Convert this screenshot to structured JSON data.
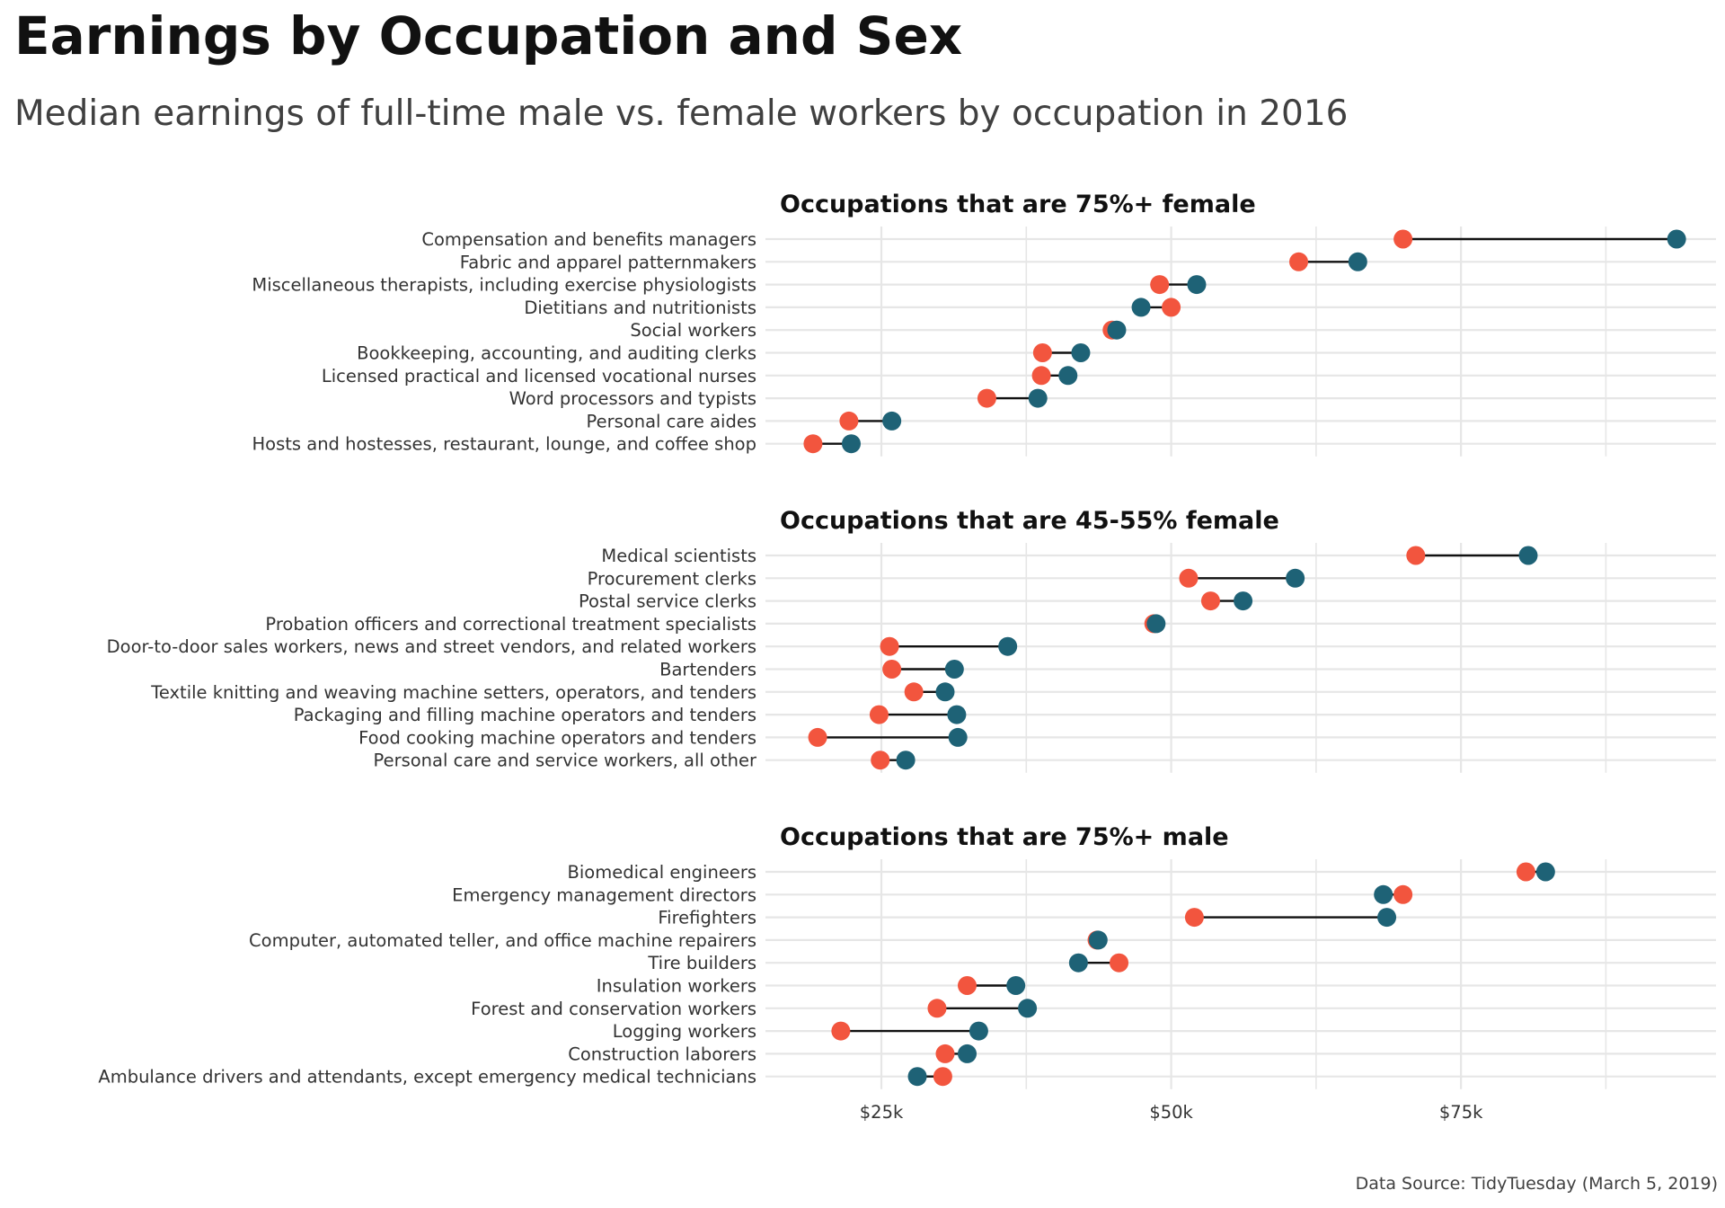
{
  "title": "Earnings by Occupation and Sex",
  "subtitle": "Median earnings of full-time male vs. female workers by occupation in 2016",
  "caption": "Data Source: TidyTuesday (March 5, 2019)",
  "colors": {
    "female": "#f2553e",
    "male": "#1e6276",
    "segment": "#111111",
    "grid": "#e6e6e6"
  },
  "chart_data": {
    "type": "dumbbell",
    "xlim": [
      15000,
      97000
    ],
    "x_ticks": [
      {
        "value": 25000,
        "label": "$25k"
      },
      {
        "value": 50000,
        "label": "$50k"
      },
      {
        "value": 75000,
        "label": "$75k"
      }
    ],
    "x_minor_grid": [
      37500,
      62500,
      87500
    ],
    "grid": true,
    "legend": "none",
    "panels": [
      {
        "title": "Occupations that are 75%+ female",
        "rows": [
          {
            "occupation": "Compensation and benefits managers",
            "female": 70000,
            "male": 93600
          },
          {
            "occupation": "Fabric and apparel patternmakers",
            "female": 61000,
            "male": 66100
          },
          {
            "occupation": "Miscellaneous therapists, including exercise physiologists",
            "female": 49000,
            "male": 52200
          },
          {
            "occupation": "Dietitians and nutritionists",
            "female": 50000,
            "male": 47400
          },
          {
            "occupation": "Social workers",
            "female": 44900,
            "male": 45300
          },
          {
            "occupation": "Bookkeeping, accounting, and auditing clerks",
            "female": 38900,
            "male": 42200
          },
          {
            "occupation": "Licensed practical and licensed vocational nurses",
            "female": 38800,
            "male": 41100
          },
          {
            "occupation": "Word processors and typists",
            "female": 34100,
            "male": 38500
          },
          {
            "occupation": "Personal care aides",
            "female": 22200,
            "male": 25900
          },
          {
            "occupation": "Hosts and hostesses, restaurant, lounge, and coffee shop",
            "female": 19100,
            "male": 22400
          }
        ]
      },
      {
        "title": "Occupations that are 45-55% female",
        "rows": [
          {
            "occupation": "Medical scientists",
            "female": 71100,
            "male": 80800
          },
          {
            "occupation": "Procurement clerks",
            "female": 51500,
            "male": 60700
          },
          {
            "occupation": "Postal service clerks",
            "female": 53400,
            "male": 56200
          },
          {
            "occupation": "Probation officers and correctional treatment specialists",
            "female": 48500,
            "male": 48700
          },
          {
            "occupation": "Door-to-door sales workers, news and street vendors, and related workers",
            "female": 25700,
            "male": 35900
          },
          {
            "occupation": "Bartenders",
            "female": 25900,
            "male": 31300
          },
          {
            "occupation": "Textile knitting and weaving machine setters, operators, and tenders",
            "female": 27800,
            "male": 30500
          },
          {
            "occupation": "Packaging and filling machine operators and tenders",
            "female": 24800,
            "male": 31500
          },
          {
            "occupation": "Food cooking machine operators and tenders",
            "female": 19500,
            "male": 31600
          },
          {
            "occupation": "Personal care and service workers, all other",
            "female": 24900,
            "male": 27100
          }
        ]
      },
      {
        "title": "Occupations that are 75%+ male",
        "rows": [
          {
            "occupation": "Biomedical engineers",
            "female": 80600,
            "male": 82300
          },
          {
            "occupation": "Emergency management directors",
            "female": 70000,
            "male": 68300
          },
          {
            "occupation": "Firefighters",
            "female": 52000,
            "male": 68600
          },
          {
            "occupation": "Computer, automated teller, and office machine repairers",
            "female": 43600,
            "male": 43700
          },
          {
            "occupation": "Tire builders",
            "female": 45500,
            "male": 42000
          },
          {
            "occupation": "Insulation workers",
            "female": 32400,
            "male": 36600
          },
          {
            "occupation": "Forest and conservation workers",
            "female": 29800,
            "male": 37600
          },
          {
            "occupation": "Logging workers",
            "female": 21500,
            "male": 33400
          },
          {
            "occupation": "Construction laborers",
            "female": 30500,
            "male": 32400
          },
          {
            "occupation": "Ambulance drivers and attendants, except emergency medical technicians",
            "female": 30300,
            "male": 28100
          }
        ]
      }
    ]
  }
}
